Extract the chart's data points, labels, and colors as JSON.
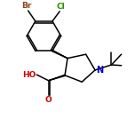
{
  "bg_color": "#ffffff",
  "bond_color": "#000000",
  "atom_colors": {
    "Br": "#8B4513",
    "Cl": "#2E8B00",
    "N": "#0000cc",
    "O": "#cc0000",
    "H": "#000000",
    "C": "#000000"
  },
  "font_size_atom": 6.5,
  "line_width": 1.1,
  "figsize": [
    1.52,
    1.52
  ],
  "dpi": 100,
  "xlim": [
    0,
    10
  ],
  "ylim": [
    0,
    10
  ]
}
